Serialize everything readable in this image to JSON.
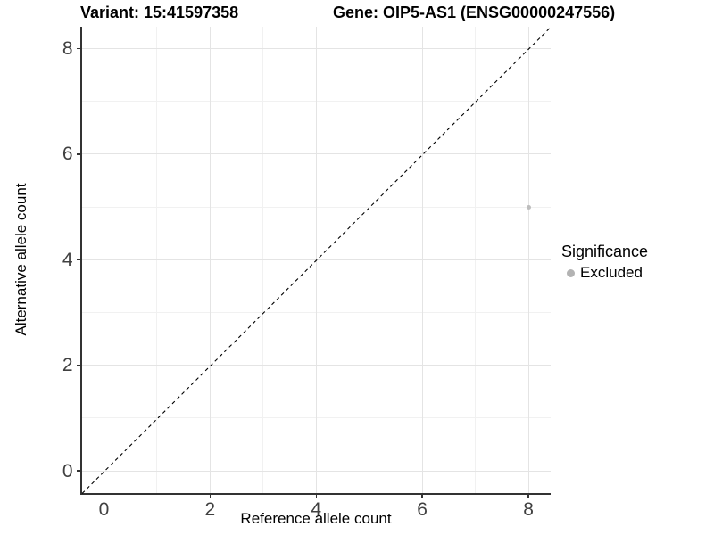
{
  "chart_data": {
    "type": "scatter",
    "title_left": "Variant: 15:41597358",
    "title_right": "Gene: OIP5-AS1 (ENSG00000247556)",
    "xlabel": "Reference allele count",
    "ylabel": "Alternative allele count",
    "xlim": [
      -0.42,
      8.42
    ],
    "ylim": [
      -0.42,
      8.42
    ],
    "x_ticks": [
      0,
      2,
      4,
      6,
      8
    ],
    "y_ticks": [
      0,
      2,
      4,
      6,
      8
    ],
    "x_minor_ticks": [
      1,
      3,
      5,
      7
    ],
    "y_minor_ticks": [
      1,
      3,
      5,
      7
    ],
    "grid": true,
    "identity_line": {
      "style": "dashed",
      "x1": -0.42,
      "y1": -0.42,
      "x2": 8.42,
      "y2": 8.42
    },
    "series": [
      {
        "name": "Excluded",
        "color": "#bdbdbd",
        "point_diameter": 5,
        "points": [
          {
            "x": 8,
            "y": 5
          }
        ]
      }
    ],
    "legend": {
      "title": "Significance",
      "position": "right",
      "entries": [
        {
          "label": "Excluded",
          "color": "#b3b3b3"
        }
      ]
    },
    "colors": {
      "major_grid": "#e4e4e4",
      "minor_grid": "#f1f1f1",
      "axis_line": "#333333",
      "tick_label": "#404040",
      "dashed_line": "#000000"
    }
  }
}
